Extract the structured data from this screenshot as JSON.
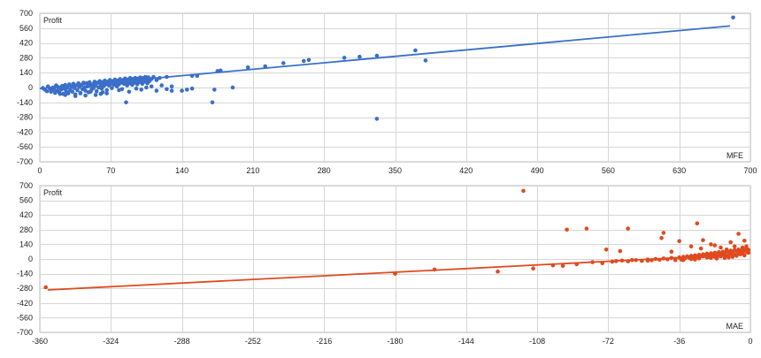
{
  "chart_data": [
    {
      "type": "scatter",
      "series_label": "Profit",
      "x_label": "MFE",
      "xlim": [
        0,
        700
      ],
      "ylim": [
        -700,
        700
      ],
      "x_ticks": [
        0,
        70,
        140,
        210,
        280,
        350,
        420,
        490,
        560,
        630,
        700
      ],
      "y_ticks": [
        -700,
        -560,
        -420,
        -280,
        -140,
        0,
        140,
        280,
        420,
        560,
        700
      ],
      "grid": true,
      "color": "#3a6fc9",
      "trendline": {
        "x": [
          0,
          680
        ],
        "y": [
          -10,
          580
        ]
      },
      "points": [
        [
          683,
          660
        ],
        [
          370,
          350
        ],
        [
          332,
          300
        ],
        [
          315,
          290
        ],
        [
          300,
          280
        ],
        [
          265,
          260
        ],
        [
          260,
          250
        ],
        [
          240,
          230
        ],
        [
          222,
          200
        ],
        [
          205,
          190
        ],
        [
          178,
          160
        ],
        [
          175,
          155
        ],
        [
          155,
          110
        ],
        [
          150,
          110
        ],
        [
          125,
          100
        ],
        [
          190,
          0
        ],
        [
          172,
          -20
        ],
        [
          150,
          -10
        ],
        [
          145,
          -20
        ],
        [
          140,
          -30
        ],
        [
          130,
          -30
        ],
        [
          332,
          -295
        ],
        [
          380,
          255
        ],
        [
          170,
          -140
        ],
        [
          85,
          -140
        ],
        [
          60,
          -60
        ],
        [
          20,
          -60
        ],
        [
          3,
          -5
        ],
        [
          5,
          -20
        ],
        [
          7,
          -35
        ],
        [
          8,
          10
        ],
        [
          10,
          -10
        ],
        [
          11,
          -40
        ],
        [
          12,
          -25
        ],
        [
          13,
          0
        ],
        [
          14,
          -15
        ],
        [
          15,
          -50
        ],
        [
          16,
          20
        ],
        [
          17,
          -30
        ],
        [
          18,
          5
        ],
        [
          19,
          -45
        ],
        [
          20,
          -5
        ],
        [
          21,
          -20
        ],
        [
          22,
          15
        ],
        [
          23,
          -60
        ],
        [
          24,
          -10
        ],
        [
          25,
          25
        ],
        [
          26,
          -35
        ],
        [
          27,
          0
        ],
        [
          28,
          -55
        ],
        [
          29,
          30
        ],
        [
          30,
          -20
        ],
        [
          31,
          10
        ],
        [
          32,
          -40
        ],
        [
          33,
          35
        ],
        [
          34,
          -5
        ],
        [
          35,
          -65
        ],
        [
          36,
          20
        ],
        [
          37,
          -25
        ],
        [
          38,
          40
        ],
        [
          39,
          5
        ],
        [
          40,
          -50
        ],
        [
          41,
          25
        ],
        [
          42,
          -15
        ],
        [
          43,
          45
        ],
        [
          44,
          0
        ],
        [
          45,
          -30
        ],
        [
          46,
          40
        ],
        [
          47,
          10
        ],
        [
          48,
          -45
        ],
        [
          49,
          50
        ],
        [
          50,
          15
        ],
        [
          51,
          -20
        ],
        [
          52,
          30
        ],
        [
          53,
          -5
        ],
        [
          54,
          55
        ],
        [
          55,
          20
        ],
        [
          56,
          -35
        ],
        [
          57,
          45
        ],
        [
          58,
          0
        ],
        [
          59,
          60
        ],
        [
          60,
          25
        ],
        [
          61,
          -10
        ],
        [
          62,
          50
        ],
        [
          63,
          15
        ],
        [
          64,
          65
        ],
        [
          65,
          30
        ],
        [
          66,
          -25
        ],
        [
          67,
          55
        ],
        [
          68,
          20
        ],
        [
          69,
          70
        ],
        [
          70,
          35
        ],
        [
          71,
          -5
        ],
        [
          72,
          60
        ],
        [
          73,
          25
        ],
        [
          74,
          75
        ],
        [
          75,
          40
        ],
        [
          76,
          10
        ],
        [
          77,
          65
        ],
        [
          78,
          30
        ],
        [
          79,
          80
        ],
        [
          80,
          45
        ],
        [
          81,
          -15
        ],
        [
          82,
          70
        ],
        [
          83,
          35
        ],
        [
          84,
          85
        ],
        [
          85,
          50
        ],
        [
          86,
          20
        ],
        [
          87,
          75
        ],
        [
          88,
          40
        ],
        [
          89,
          90
        ],
        [
          90,
          55
        ],
        [
          91,
          25
        ],
        [
          92,
          80
        ],
        [
          93,
          45
        ],
        [
          94,
          90
        ],
        [
          95,
          60
        ],
        [
          96,
          30
        ],
        [
          97,
          85
        ],
        [
          98,
          50
        ],
        [
          99,
          95
        ],
        [
          100,
          65
        ],
        [
          101,
          35
        ],
        [
          102,
          90
        ],
        [
          103,
          55
        ],
        [
          104,
          100
        ],
        [
          105,
          70
        ],
        [
          106,
          40
        ],
        [
          107,
          95
        ],
        [
          108,
          60
        ],
        [
          110,
          80
        ],
        [
          112,
          100
        ],
        [
          115,
          70
        ],
        [
          118,
          90
        ],
        [
          95,
          -10
        ],
        [
          100,
          -20
        ],
        [
          105,
          0
        ],
        [
          110,
          10
        ],
        [
          115,
          -30
        ],
        [
          120,
          20
        ],
        [
          125,
          -15
        ],
        [
          130,
          10
        ],
        [
          88,
          -40
        ],
        [
          78,
          -25
        ],
        [
          66,
          -55
        ],
        [
          55,
          -70
        ],
        [
          45,
          -75
        ],
        [
          35,
          -80
        ],
        [
          25,
          -70
        ],
        [
          28,
          -45
        ],
        [
          40,
          -55
        ],
        [
          50,
          -40
        ],
        [
          62,
          -45
        ]
      ]
    },
    {
      "type": "scatter",
      "series_label": "Profit",
      "x_label": "MAE",
      "xlim": [
        -360,
        0
      ],
      "ylim": [
        -700,
        700
      ],
      "x_ticks": [
        -360,
        -324,
        -288,
        -252,
        -216,
        -180,
        -144,
        -108,
        -72,
        -36,
        0
      ],
      "y_ticks": [
        -700,
        -560,
        -420,
        -280,
        -140,
        0,
        140,
        280,
        420,
        560,
        700
      ],
      "grid": true,
      "color": "#e04a1f",
      "trendline": {
        "x": [
          -356,
          -2
        ],
        "y": [
          -295,
          45
        ]
      },
      "points": [
        [
          -357,
          -270
        ],
        [
          -180,
          -140
        ],
        [
          -160,
          -100
        ],
        [
          -128,
          -120
        ],
        [
          -115,
          650
        ],
        [
          -110,
          -90
        ],
        [
          -100,
          -60
        ],
        [
          -95,
          -65
        ],
        [
          -93,
          280
        ],
        [
          -88,
          -50
        ],
        [
          -83,
          290
        ],
        [
          -80,
          -30
        ],
        [
          -75,
          -40
        ],
        [
          -73,
          90
        ],
        [
          -66,
          75
        ],
        [
          -62,
          290
        ],
        [
          -60,
          -10
        ],
        [
          -52,
          -15
        ],
        [
          -45,
          200
        ],
        [
          -44,
          250
        ],
        [
          -40,
          70
        ],
        [
          -38,
          -10
        ],
        [
          -36,
          170
        ],
        [
          -30,
          120
        ],
        [
          -27,
          340
        ],
        [
          -25,
          100
        ],
        [
          -24,
          180
        ],
        [
          -22,
          50
        ],
        [
          -20,
          140
        ],
        [
          -18,
          130
        ],
        [
          -15,
          110
        ],
        [
          -12,
          90
        ],
        [
          -10,
          160
        ],
        [
          -8,
          120
        ],
        [
          -6,
          240
        ],
        [
          -4,
          110
        ],
        [
          -3,
          175
        ],
        [
          -2,
          120
        ],
        [
          -70,
          -25
        ],
        [
          -68,
          -20
        ],
        [
          -65,
          -15
        ],
        [
          -62,
          -22
        ],
        [
          -58,
          -10
        ],
        [
          -55,
          -18
        ],
        [
          -52,
          -5
        ],
        [
          -50,
          -12
        ],
        [
          -48,
          0
        ],
        [
          -46,
          -8
        ],
        [
          -44,
          5
        ],
        [
          -42,
          -3
        ],
        [
          -40,
          10
        ],
        [
          -38,
          2
        ],
        [
          -36,
          15
        ],
        [
          -35,
          -5
        ],
        [
          -34,
          20
        ],
        [
          -33,
          8
        ],
        [
          -32,
          25
        ],
        [
          -31,
          12
        ],
        [
          -30,
          30
        ],
        [
          -29,
          18
        ],
        [
          -28,
          35
        ],
        [
          -27,
          22
        ],
        [
          -26,
          40
        ],
        [
          -25,
          28
        ],
        [
          -24,
          45
        ],
        [
          -23,
          32
        ],
        [
          -22,
          50
        ],
        [
          -21,
          38
        ],
        [
          -20,
          55
        ],
        [
          -19,
          42
        ],
        [
          -18,
          60
        ],
        [
          -17,
          48
        ],
        [
          -16,
          65
        ],
        [
          -15,
          52
        ],
        [
          -14,
          70
        ],
        [
          -13,
          58
        ],
        [
          -12,
          75
        ],
        [
          -11,
          62
        ],
        [
          -10,
          80
        ],
        [
          -9,
          68
        ],
        [
          -8,
          85
        ],
        [
          -7,
          72
        ],
        [
          -6,
          90
        ],
        [
          -5,
          78
        ],
        [
          -4,
          95
        ],
        [
          -3,
          82
        ],
        [
          -2,
          100
        ],
        [
          -1,
          88
        ],
        [
          -14,
          40
        ],
        [
          -12,
          30
        ],
        [
          -10,
          50
        ],
        [
          -8,
          40
        ],
        [
          -6,
          60
        ],
        [
          -4,
          55
        ],
        [
          -3,
          35
        ],
        [
          -2,
          70
        ],
        [
          -1,
          60
        ],
        [
          -18,
          20
        ],
        [
          -16,
          35
        ],
        [
          -22,
          15
        ],
        [
          -26,
          5
        ],
        [
          -30,
          0
        ],
        [
          -34,
          -10
        ],
        [
          -28,
          -5
        ],
        [
          -20,
          10
        ],
        [
          -24,
          25
        ],
        [
          -9,
          20
        ],
        [
          -7,
          30
        ],
        [
          -5,
          45
        ],
        [
          -11,
          15
        ],
        [
          -13,
          10
        ],
        [
          -15,
          25
        ],
        [
          -17,
          5
        ],
        [
          -19,
          30
        ],
        [
          -21,
          20
        ]
      ]
    }
  ]
}
